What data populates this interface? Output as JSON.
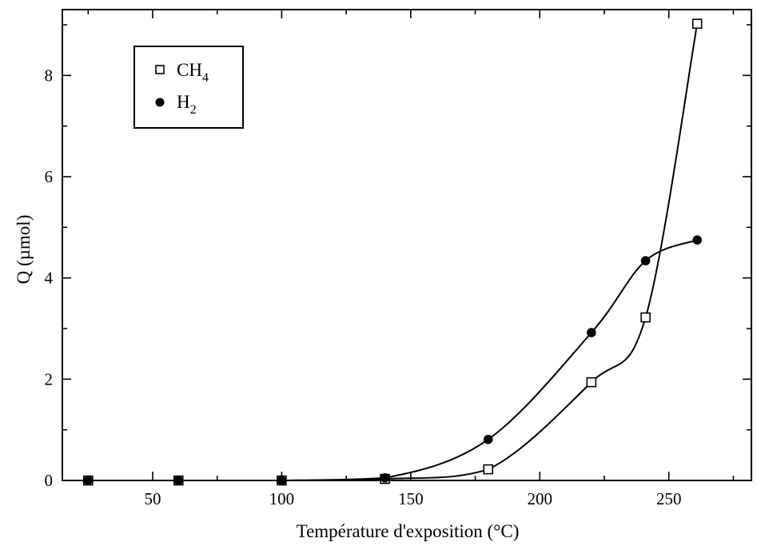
{
  "chart_data": {
    "type": "scatter",
    "title": "",
    "xlabel": "Température d'exposition (°C)",
    "ylabel": "Q (µmol)",
    "xlim": [
      15,
      282
    ],
    "ylim": [
      0,
      9.3
    ],
    "xticks": [
      50,
      100,
      150,
      200,
      250
    ],
    "yticks": [
      0,
      2,
      4,
      6,
      8
    ],
    "grid": false,
    "legend_position": "top-left",
    "series": [
      {
        "name": "CH4",
        "name_base": "CH",
        "name_sub": "4",
        "marker": "open-square",
        "x": [
          25,
          60,
          100,
          140,
          180,
          220,
          241,
          261
        ],
        "y": [
          0,
          0,
          0,
          0.03,
          0.22,
          1.94,
          3.22,
          9.02
        ]
      },
      {
        "name": "H2",
        "name_base": "H",
        "name_sub": "2",
        "marker": "filled-circle",
        "x": [
          25,
          60,
          100,
          140,
          180,
          220,
          241,
          261
        ],
        "y": [
          0,
          0,
          0,
          0.05,
          0.81,
          2.92,
          4.34,
          4.75
        ]
      }
    ]
  }
}
